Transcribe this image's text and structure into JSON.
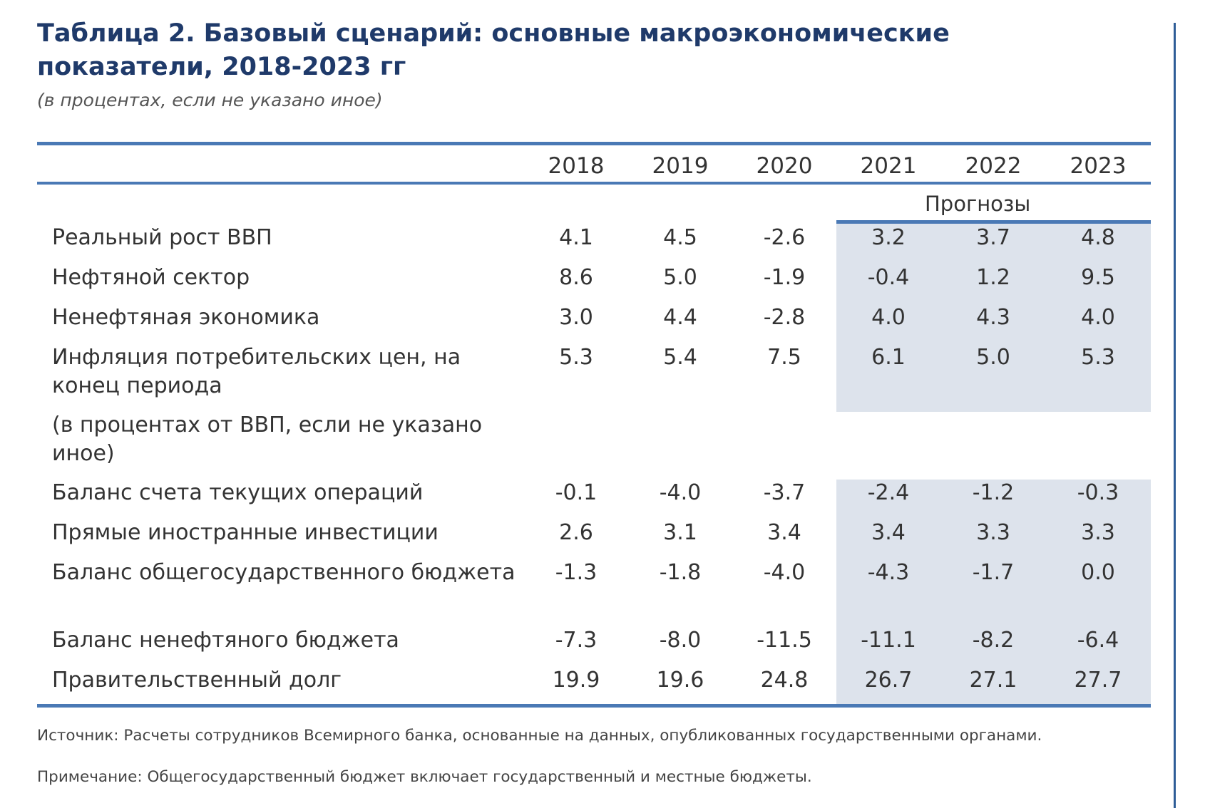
{
  "title": "Таблица 2. Базовый сценарий: основные макроэкономические показатели, 2018-2023 гг",
  "subtitle": "(в процентах, если не указано иное)",
  "years": [
    "2018",
    "2019",
    "2020",
    "2021",
    "2022",
    "2023"
  ],
  "forecast_label": "Прогнозы",
  "rows": [
    {
      "label": "Реальный рост ВВП",
      "values": [
        "4.1",
        "4.5",
        "-2.6",
        "3.2",
        "3.7",
        "4.8"
      ]
    },
    {
      "label": "Нефтяной сектор",
      "values": [
        "8.6",
        "5.0",
        "-1.9",
        "-0.4",
        "1.2",
        "9.5"
      ]
    },
    {
      "label": "Ненефтяная экономика",
      "values": [
        "3.0",
        "4.4",
        "-2.8",
        "4.0",
        "4.3",
        "4.0"
      ]
    },
    {
      "label": "Инфляция потребительских цен, на конец периода",
      "values": [
        "5.3",
        "5.4",
        "7.5",
        "6.1",
        "5.0",
        "5.3"
      ]
    },
    {
      "label": "(в процентах от ВВП, если не указано иное)",
      "values": []
    },
    {
      "label": "Баланс счета текущих операций",
      "values": [
        "-0.1",
        "-4.0",
        "-3.7",
        "-2.4",
        "-1.2",
        "-0.3"
      ]
    },
    {
      "label": "Прямые иностранные инвестиции",
      "values": [
        "2.6",
        "3.1",
        "3.4",
        "3.4",
        "3.3",
        "3.3"
      ]
    },
    {
      "label": "Баланс общегосударственного бюджета",
      "values": [
        "-1.3",
        "-1.8",
        "-4.0",
        "-4.3",
        "-1.7",
        "0.0"
      ]
    },
    {
      "label": "Баланс ненефтяного бюджета",
      "values": [
        "-7.3",
        "-8.0",
        "-11.5",
        "-11.1",
        "-8.2",
        "-6.4"
      ]
    },
    {
      "label": "Правительственный долг",
      "values": [
        "19.9",
        "19.6",
        "24.8",
        "26.7",
        "27.1",
        "27.7"
      ]
    }
  ],
  "source": "Источник: Расчеты сотрудников Всемирного банка, основанные на данных, опубликованных государственными органами.",
  "note": "Примечание: Общегосударственный бюджет включает государственный и местные бюджеты.",
  "colors": {
    "title": "#1f3a6a",
    "rule": "#4a79b5",
    "shade": "#dde3ec"
  }
}
